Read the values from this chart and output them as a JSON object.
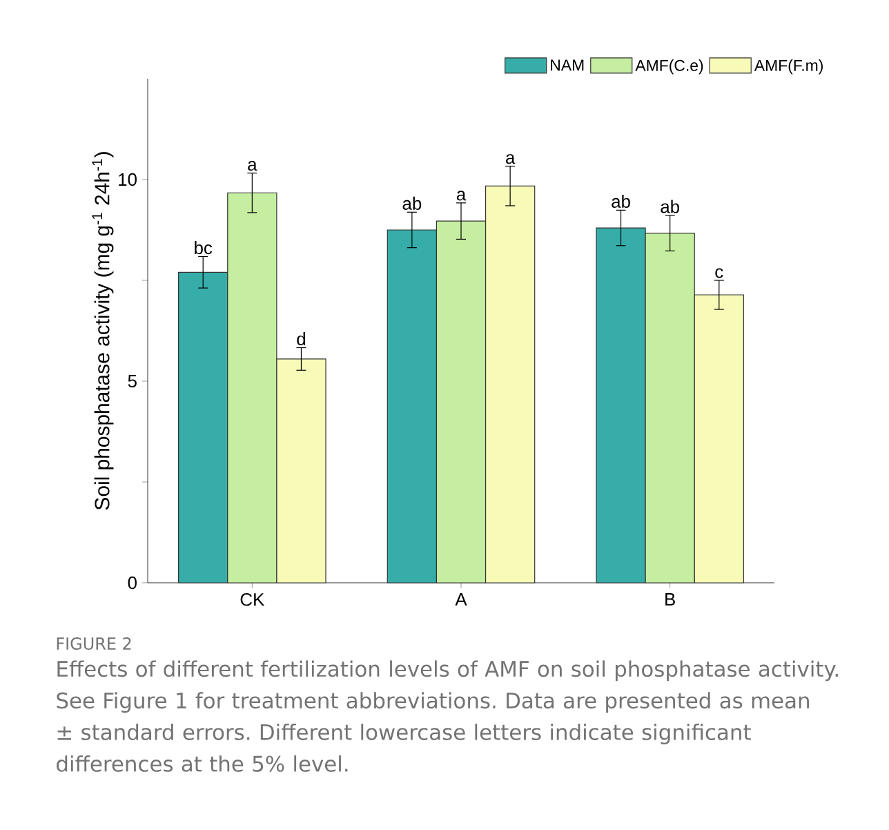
{
  "chart_data": {
    "type": "bar",
    "ylabel": "Soil phosphatase activity (mg g$^{-1}$ 24h$^{-1}$)",
    "categories": [
      "CK",
      "A",
      "B"
    ],
    "series": [
      {
        "name": "NAM",
        "color": "#36ada9",
        "values": [
          7.7,
          8.75,
          8.8
        ],
        "errors": [
          0.39,
          0.44,
          0.44
        ],
        "value_labels": [
          "bc",
          "ab",
          "ab"
        ]
      },
      {
        "name": "AMF(C.e)",
        "color": "#c6eea0",
        "values": [
          9.67,
          8.97,
          8.67
        ],
        "errors": [
          0.49,
          0.45,
          0.44
        ],
        "value_labels": [
          "a",
          "a",
          "ab"
        ]
      },
      {
        "name": "AMF(F.m)",
        "color": "#f8fbb8",
        "values": [
          5.55,
          9.84,
          7.14
        ],
        "errors": [
          0.28,
          0.49,
          0.36
        ],
        "value_labels": [
          "d",
          "a",
          "c"
        ]
      }
    ],
    "ylim": [
      0,
      12.5
    ],
    "yticks": [
      0,
      {
        "value": 2.5,
        "label": null
      },
      5,
      {
        "value": 7.5,
        "label": null
      },
      10
    ],
    "legend": "top right",
    "annotations": [
      "FIGURE 2",
      "Effects of different fertilization levels of AMF on soil phosphatase activity. See Figure 1 for treatment abbreviations. Data are presented as mean ± standard errors. Different lowercase letters indicate significant differences at the 5% level."
    ]
  }
}
